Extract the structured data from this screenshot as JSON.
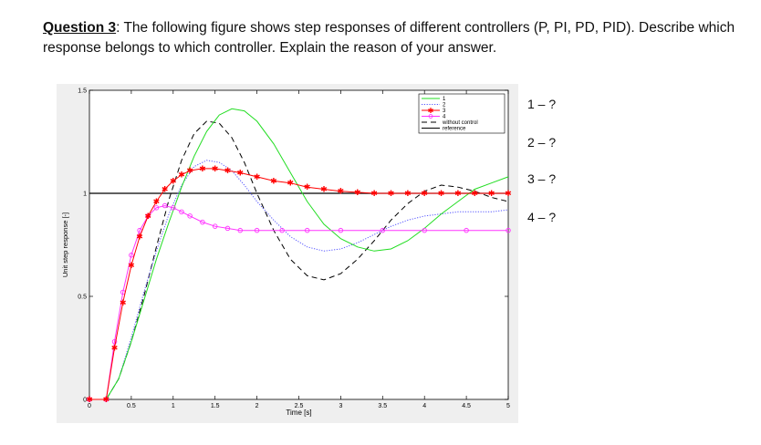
{
  "question": {
    "label": "Question 3",
    "text": ": The following figure shows step responses of different controllers (P, PI, PD, PID). Describe which response belongs to which controller. Explain the reason of your answer."
  },
  "answers": [
    "1 – ?",
    "2 – ?",
    "3 – ?",
    "4 – ?"
  ],
  "chart_data": {
    "type": "line",
    "title": "",
    "xlabel": "Time [s]",
    "ylabel": "Unit step response [-]",
    "xlim": [
      0,
      5
    ],
    "ylim": [
      0,
      1.5
    ],
    "xticks": [
      0,
      0.5,
      1,
      1.5,
      2,
      2.5,
      3,
      3.5,
      4,
      4.5,
      5
    ],
    "xtick_labels": [
      "0",
      "0.5",
      "1",
      "1.5",
      "2",
      "2.5",
      "3",
      "3.5",
      "4",
      "4.5",
      "5"
    ],
    "yticks": [
      0,
      0.5,
      1,
      1.5
    ],
    "ytick_labels": [
      "0",
      "0.5",
      "1",
      "1.5"
    ],
    "grid": false,
    "legend_position": "top-right",
    "series": [
      {
        "name": "1",
        "color": "#22dd22",
        "style": "solid",
        "x": [
          0,
          0.2,
          0.35,
          0.5,
          0.65,
          0.8,
          0.95,
          1.1,
          1.25,
          1.4,
          1.55,
          1.7,
          1.85,
          2.0,
          2.2,
          2.4,
          2.6,
          2.8,
          3.0,
          3.2,
          3.4,
          3.6,
          3.8,
          4.0,
          4.2,
          4.4,
          4.6,
          4.8,
          5.0
        ],
        "y": [
          0,
          0,
          0.1,
          0.28,
          0.48,
          0.68,
          0.86,
          1.03,
          1.18,
          1.3,
          1.38,
          1.41,
          1.4,
          1.35,
          1.24,
          1.1,
          0.96,
          0.85,
          0.78,
          0.74,
          0.72,
          0.73,
          0.77,
          0.83,
          0.9,
          0.96,
          1.02,
          1.05,
          1.08
        ]
      },
      {
        "name": "2",
        "color": "#5555ff",
        "style": "dotted",
        "x": [
          0,
          0.2,
          0.35,
          0.5,
          0.65,
          0.8,
          0.95,
          1.1,
          1.25,
          1.4,
          1.55,
          1.7,
          1.85,
          2.0,
          2.2,
          2.4,
          2.6,
          2.8,
          3.0,
          3.2,
          3.4,
          3.6,
          3.8,
          4.0,
          4.2,
          4.4,
          4.6,
          4.8,
          5.0
        ],
        "y": [
          0,
          0,
          0.1,
          0.3,
          0.52,
          0.72,
          0.9,
          1.04,
          1.13,
          1.16,
          1.15,
          1.11,
          1.04,
          0.96,
          0.87,
          0.79,
          0.74,
          0.72,
          0.73,
          0.76,
          0.8,
          0.84,
          0.87,
          0.89,
          0.9,
          0.91,
          0.91,
          0.91,
          0.92
        ]
      },
      {
        "name": "3",
        "color": "#ff0000",
        "style": "solid",
        "marker": "star",
        "x": [
          0,
          0.2,
          0.3,
          0.4,
          0.5,
          0.6,
          0.7,
          0.8,
          0.9,
          1.0,
          1.1,
          1.2,
          1.35,
          1.5,
          1.65,
          1.8,
          2.0,
          2.2,
          2.4,
          2.6,
          2.8,
          3.0,
          3.2,
          3.4,
          3.6,
          3.8,
          4.0,
          4.2,
          4.4,
          4.6,
          4.8,
          5.0
        ],
        "y": [
          0,
          0,
          0.25,
          0.47,
          0.65,
          0.79,
          0.89,
          0.96,
          1.02,
          1.06,
          1.09,
          1.11,
          1.12,
          1.12,
          1.11,
          1.1,
          1.08,
          1.06,
          1.05,
          1.03,
          1.02,
          1.01,
          1.005,
          1.0,
          1.0,
          1.0,
          1.0,
          1.0,
          1.0,
          1.0,
          1.0,
          1.0
        ]
      },
      {
        "name": "4",
        "color": "#ff33ff",
        "style": "solid",
        "marker": "circle",
        "x": [
          0,
          0.2,
          0.3,
          0.4,
          0.5,
          0.6,
          0.7,
          0.8,
          0.9,
          1.0,
          1.1,
          1.2,
          1.35,
          1.5,
          1.65,
          1.8,
          2.0,
          2.3,
          2.6,
          3.0,
          3.5,
          4.0,
          4.5,
          5.0
        ],
        "y": [
          0,
          0,
          0.28,
          0.52,
          0.7,
          0.82,
          0.89,
          0.93,
          0.94,
          0.93,
          0.91,
          0.89,
          0.86,
          0.84,
          0.83,
          0.82,
          0.82,
          0.82,
          0.82,
          0.82,
          0.82,
          0.82,
          0.82,
          0.82
        ]
      },
      {
        "name": "without control",
        "color": "#000000",
        "style": "dashed",
        "x": [
          0,
          0.2,
          0.35,
          0.5,
          0.65,
          0.8,
          0.95,
          1.1,
          1.25,
          1.4,
          1.55,
          1.7,
          1.85,
          2.0,
          2.2,
          2.4,
          2.6,
          2.8,
          3.0,
          3.2,
          3.4,
          3.6,
          3.8,
          4.0,
          4.2,
          4.4,
          4.6,
          4.8,
          5.0
        ],
        "y": [
          0,
          0,
          0.1,
          0.28,
          0.5,
          0.74,
          0.97,
          1.16,
          1.29,
          1.35,
          1.34,
          1.27,
          1.15,
          1.0,
          0.82,
          0.68,
          0.6,
          0.58,
          0.61,
          0.68,
          0.77,
          0.87,
          0.95,
          1.01,
          1.04,
          1.03,
          1.01,
          0.98,
          0.96
        ]
      },
      {
        "name": "reference",
        "color": "#000000",
        "style": "solid",
        "x": [
          0,
          5
        ],
        "y": [
          1,
          1
        ]
      }
    ]
  }
}
